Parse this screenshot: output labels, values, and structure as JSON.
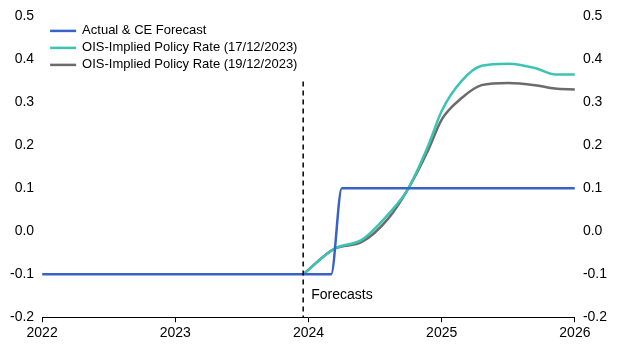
{
  "chart_data": {
    "type": "line",
    "series": [
      {
        "name": "Actual & CE Forecast",
        "color": "#3862C6",
        "x": [
          2022,
          2024.17,
          2024.25,
          2026
        ],
        "values": [
          -0.1,
          -0.1,
          0.1,
          0.1
        ]
      },
      {
        "name": "OIS-Implied Policy Rate (17/12/2023)",
        "color": "#3CC4B2",
        "x": [
          2023.96,
          2024.2,
          2024.4,
          2024.6,
          2024.75,
          2024.9,
          2025.0,
          2025.15,
          2025.3,
          2025.5,
          2025.7,
          2025.85,
          2026
        ],
        "values": [
          -0.1,
          -0.04,
          -0.02,
          0.04,
          0.1,
          0.2,
          0.28,
          0.35,
          0.385,
          0.39,
          0.38,
          0.365,
          0.365
        ]
      },
      {
        "name": "OIS-Implied Policy Rate (19/12/2023)",
        "color": "#6B6B6B",
        "x": [
          2023.96,
          2024.2,
          2024.4,
          2024.6,
          2024.75,
          2024.9,
          2025.0,
          2025.15,
          2025.3,
          2025.5,
          2025.7,
          2025.85,
          2026
        ],
        "values": [
          -0.1,
          -0.04,
          -0.025,
          0.03,
          0.1,
          0.19,
          0.26,
          0.31,
          0.34,
          0.345,
          0.34,
          0.332,
          0.33
        ]
      }
    ],
    "xlim": [
      2022,
      2026
    ],
    "xticks": [
      2022,
      2023,
      2024,
      2025,
      2026
    ],
    "ylim": [
      -0.2,
      0.5
    ],
    "yticks": [
      -0.2,
      -0.1,
      {
        "value": 0,
        "label": "0.0"
      },
      0.1,
      0.2,
      0.3,
      0.4,
      0.5
    ],
    "y2lim": [
      -0.2,
      0.5
    ],
    "y2ticks": [
      -0.2,
      -0.1,
      {
        "value": 0,
        "label": "0.0"
      },
      0.1,
      0.2,
      0.3,
      0.4,
      0.5
    ],
    "grid": false,
    "legend": "upper left",
    "annotations": [
      {
        "text": "Forecasts",
        "x": 2023.96
      }
    ]
  }
}
